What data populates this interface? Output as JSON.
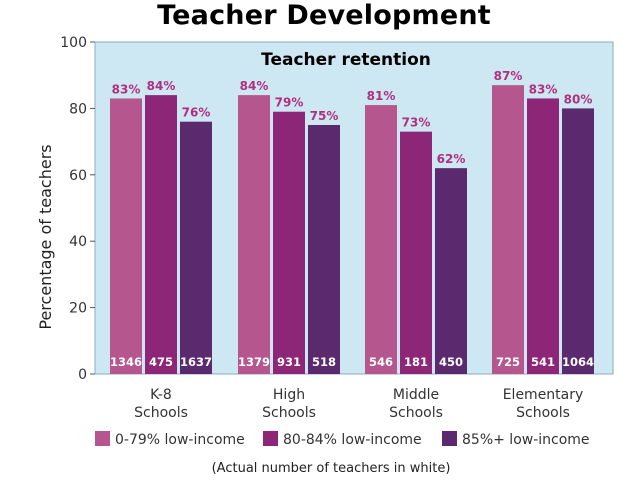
{
  "chart_data": {
    "type": "bar",
    "title": "Teacher Development",
    "subtitle": "Teacher retention",
    "ylabel": "Percentage of teachers",
    "xlabel": "",
    "ylim": [
      0,
      100
    ],
    "yticks": [
      0,
      20,
      40,
      60,
      80,
      100
    ],
    "grid": false,
    "legend_position": "bottom",
    "categories": [
      [
        "K-8",
        "Schools"
      ],
      [
        "High",
        "Schools"
      ],
      [
        "Middle",
        "Schools"
      ],
      [
        "Elementary",
        "Schools"
      ]
    ],
    "series": [
      {
        "name": "0-79% low-income",
        "color": "#b5568e",
        "values": [
          83,
          84,
          81,
          87
        ],
        "labels": [
          "83%",
          "84%",
          "81%",
          "87%"
        ],
        "counts": [
          "1346",
          "1379",
          "546",
          "725"
        ]
      },
      {
        "name": "80-84% low-income",
        "color": "#8e2677",
        "values": [
          84,
          79,
          73,
          83
        ],
        "labels": [
          "84%",
          "79%",
          "73%",
          "83%"
        ],
        "counts": [
          "475",
          "931",
          "181",
          "541"
        ]
      },
      {
        "name": "85%+ low-income",
        "color": "#5b2a6e",
        "values": [
          76,
          75,
          62,
          80
        ],
        "labels": [
          "76%",
          "75%",
          "62%",
          "80%"
        ],
        "counts": [
          "1637",
          "518",
          "450",
          "1064"
        ]
      }
    ],
    "footnote": "(Actual number of teachers in white)",
    "colors": {
      "plot_background": "#cde7f3",
      "plot_border": "#8aaec2",
      "value_label": "#b0307e",
      "count_label": "#ffffff"
    }
  }
}
